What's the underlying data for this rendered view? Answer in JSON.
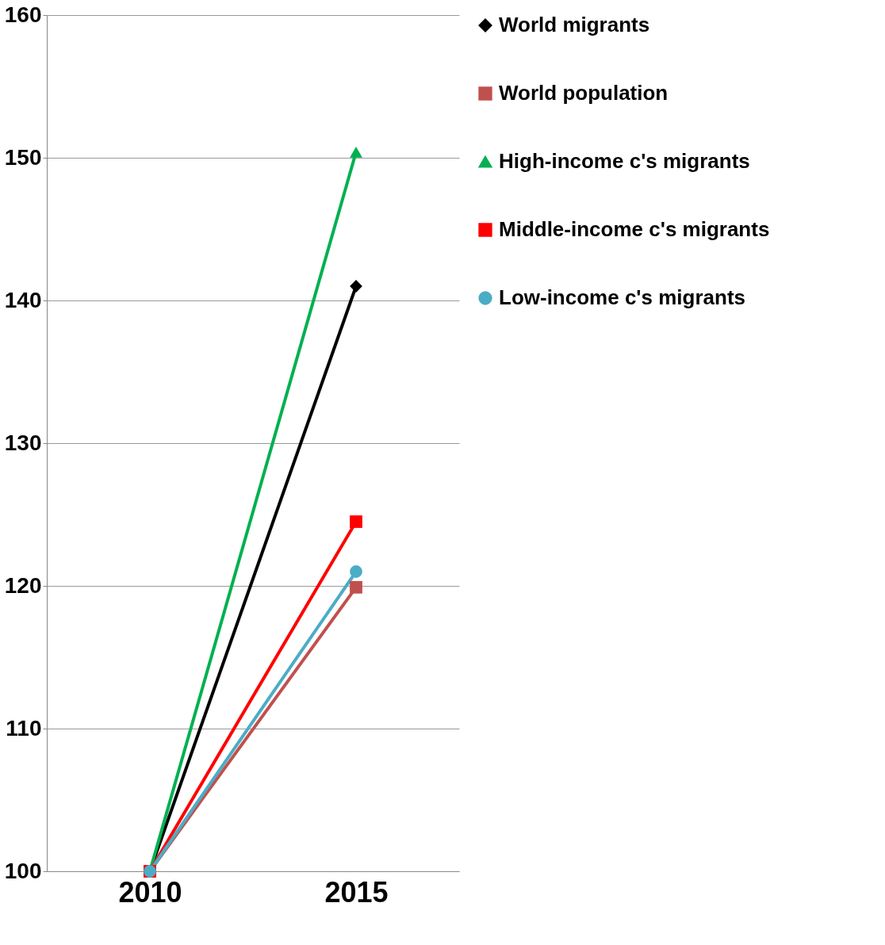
{
  "chart_data": {
    "type": "line",
    "categories": [
      "2010",
      "2015"
    ],
    "ylim": [
      100,
      160
    ],
    "yticks": [
      100,
      110,
      120,
      130,
      140,
      150,
      160
    ],
    "grid": "y",
    "legend": "right",
    "series": [
      {
        "name": "World migrants",
        "color": "#000000",
        "marker": "diamond",
        "values": [
          100,
          141.0
        ]
      },
      {
        "name": "World population",
        "color": "#c0504d",
        "marker": "square",
        "values": [
          100,
          119.9
        ]
      },
      {
        "name": "High-income c's migrants",
        "color": "#00b050",
        "marker": "triangle",
        "values": [
          100,
          150.4
        ]
      },
      {
        "name": "Middle-income c's migrants",
        "color": "#ff0000",
        "marker": "square",
        "values": [
          100,
          124.5
        ]
      },
      {
        "name": "Low-income c's migrants",
        "color": "#4bacc6",
        "marker": "circle",
        "values": [
          100,
          121.0
        ]
      }
    ]
  }
}
